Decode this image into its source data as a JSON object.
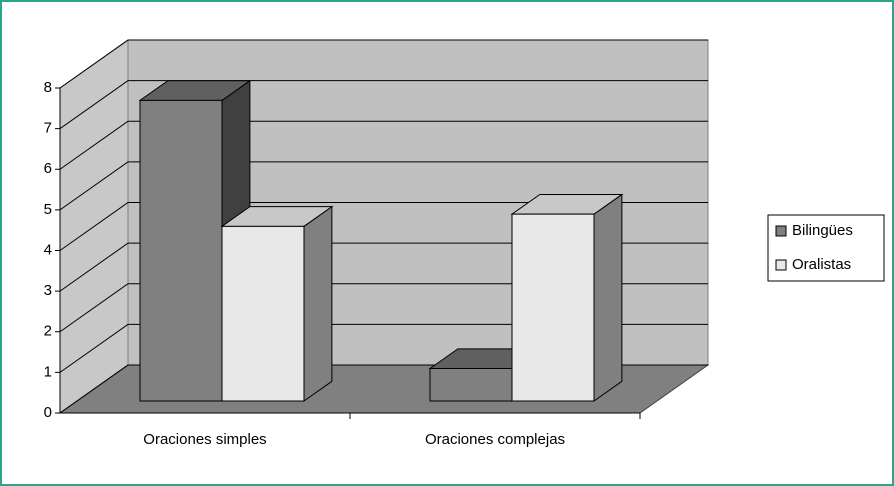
{
  "chart_data": {
    "type": "bar",
    "three_d": true,
    "categories": [
      "Oraciones simples",
      "Oraciones complejas"
    ],
    "series": [
      {
        "name": "Bilingües",
        "color": "#808080",
        "values": [
          7.4,
          0.8
        ]
      },
      {
        "name": "Oralistas",
        "color": "#e8e8e8",
        "values": [
          4.3,
          4.6
        ]
      }
    ],
    "ylim": [
      0,
      8
    ],
    "yticks": [
      0,
      1,
      2,
      3,
      4,
      5,
      6,
      7,
      8
    ],
    "grid": true,
    "legend": "right"
  }
}
